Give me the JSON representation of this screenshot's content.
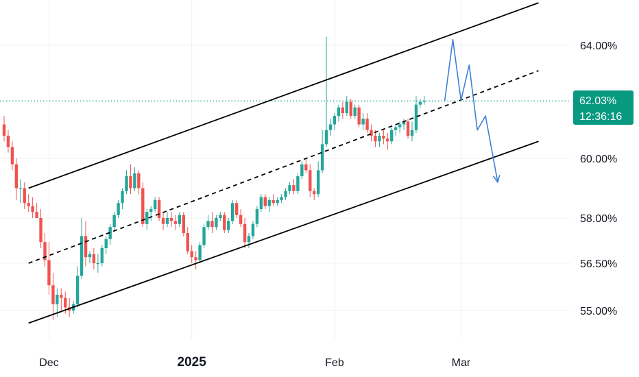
{
  "chart_data": {
    "type": "candlestick",
    "title": "",
    "ylabel": "",
    "xlabel": "",
    "y_axis_position": "right",
    "y_tick_labels": [
      "64.00%",
      "60.00%",
      "58.00%",
      "56.50%",
      "55.00%"
    ],
    "y_tick_values": [
      64.0,
      60.0,
      58.0,
      56.5,
      55.0
    ],
    "ylim": [
      54.4,
      65.3
    ],
    "x_tick_labels": [
      {
        "label": "Dec",
        "index": 11,
        "bold": false
      },
      {
        "label": "2025",
        "index": 46,
        "bold": true
      },
      {
        "label": "Feb",
        "index": 81,
        "bold": false
      },
      {
        "label": "Mar",
        "index": 112,
        "bold": false
      }
    ],
    "x_index_range": [
      0,
      131
    ],
    "current_price": {
      "label": "62.03%",
      "value": 62.03,
      "countdown": "12:36:16"
    },
    "candles": [
      [
        61.2,
        61.5,
        60.6,
        60.8
      ],
      [
        60.8,
        61.0,
        60.2,
        60.4
      ],
      [
        60.4,
        60.6,
        59.6,
        59.8
      ],
      [
        59.8,
        60.0,
        58.6,
        59.0
      ],
      [
        59.0,
        59.3,
        58.5,
        59.0
      ],
      [
        59.0,
        59.2,
        58.3,
        58.5
      ],
      [
        58.5,
        58.8,
        58.2,
        58.4
      ],
      [
        58.4,
        58.7,
        58.0,
        58.2
      ],
      [
        58.2,
        58.5,
        58.0,
        58.0
      ],
      [
        58.0,
        58.3,
        57.0,
        57.2
      ],
      [
        57.2,
        57.5,
        56.4,
        56.6
      ],
      [
        56.6,
        57.2,
        55.5,
        55.8
      ],
      [
        55.8,
        56.2,
        54.7,
        55.2
      ],
      [
        55.2,
        55.7,
        54.8,
        55.5
      ],
      [
        55.5,
        55.7,
        55.0,
        55.4
      ],
      [
        55.4,
        55.6,
        54.9,
        55.1
      ],
      [
        55.1,
        55.4,
        54.8,
        55.0
      ],
      [
        55.0,
        55.3,
        54.9,
        55.2
      ],
      [
        55.2,
        56.4,
        55.1,
        56.1
      ],
      [
        56.1,
        58.0,
        56.0,
        57.4
      ],
      [
        57.4,
        57.9,
        56.4,
        56.7
      ],
      [
        56.7,
        56.9,
        56.5,
        56.8
      ],
      [
        56.8,
        57.0,
        56.3,
        56.5
      ],
      [
        56.5,
        56.8,
        56.2,
        56.5
      ],
      [
        56.5,
        57.1,
        56.4,
        57.0
      ],
      [
        57.0,
        57.4,
        56.8,
        57.3
      ],
      [
        57.3,
        57.8,
        57.1,
        57.7
      ],
      [
        57.7,
        58.2,
        57.6,
        58.1
      ],
      [
        58.1,
        58.6,
        58.0,
        58.5
      ],
      [
        58.5,
        59.0,
        58.3,
        58.9
      ],
      [
        58.9,
        59.6,
        58.8,
        59.4
      ],
      [
        59.4,
        59.8,
        58.8,
        59.0
      ],
      [
        59.0,
        59.7,
        58.9,
        59.5
      ],
      [
        59.5,
        59.6,
        58.8,
        59.0
      ],
      [
        59.0,
        59.2,
        57.7,
        57.8
      ],
      [
        57.8,
        58.3,
        57.6,
        58.2
      ],
      [
        58.2,
        58.4,
        57.9,
        58.3
      ],
      [
        58.3,
        58.7,
        58.2,
        58.6
      ],
      [
        58.6,
        58.7,
        57.9,
        58.0
      ],
      [
        58.0,
        58.2,
        57.6,
        57.8
      ],
      [
        57.8,
        58.2,
        57.7,
        58.0
      ],
      [
        58.0,
        58.2,
        57.7,
        57.9
      ],
      [
        57.9,
        58.1,
        57.6,
        57.8
      ],
      [
        57.8,
        58.2,
        57.7,
        58.1
      ],
      [
        58.1,
        58.2,
        57.4,
        57.5
      ],
      [
        57.5,
        57.7,
        56.8,
        56.9
      ],
      [
        56.9,
        57.1,
        56.5,
        56.7
      ],
      [
        56.7,
        56.9,
        56.3,
        56.6
      ],
      [
        56.6,
        57.2,
        56.5,
        57.1
      ],
      [
        57.1,
        57.8,
        57.0,
        57.7
      ],
      [
        57.7,
        58.1,
        57.6,
        57.9
      ],
      [
        57.9,
        58.2,
        57.5,
        57.7
      ],
      [
        57.7,
        58.1,
        57.6,
        58.0
      ],
      [
        58.0,
        58.2,
        57.9,
        58.1
      ],
      [
        58.1,
        58.2,
        57.5,
        57.6
      ],
      [
        57.6,
        58.0,
        57.5,
        57.9
      ],
      [
        57.9,
        58.6,
        57.8,
        58.5
      ],
      [
        58.5,
        58.6,
        58.0,
        58.1
      ],
      [
        58.1,
        58.3,
        57.7,
        57.8
      ],
      [
        57.8,
        58.0,
        57.0,
        57.2
      ],
      [
        57.2,
        57.5,
        57.0,
        57.4
      ],
      [
        57.4,
        57.9,
        57.3,
        57.8
      ],
      [
        57.8,
        58.4,
        57.7,
        58.3
      ],
      [
        58.3,
        58.8,
        58.2,
        58.7
      ],
      [
        58.7,
        58.8,
        58.3,
        58.4
      ],
      [
        58.4,
        58.7,
        58.2,
        58.6
      ],
      [
        58.6,
        58.8,
        58.4,
        58.5
      ],
      [
        58.5,
        58.7,
        58.4,
        58.6
      ],
      [
        58.6,
        58.8,
        58.5,
        58.7
      ],
      [
        58.7,
        59.0,
        58.6,
        58.9
      ],
      [
        58.9,
        59.2,
        58.8,
        59.1
      ],
      [
        59.1,
        59.3,
        58.8,
        58.9
      ],
      [
        58.9,
        59.5,
        58.8,
        59.4
      ],
      [
        59.4,
        59.9,
        59.3,
        59.8
      ],
      [
        59.8,
        60.0,
        59.5,
        59.6
      ],
      [
        59.6,
        59.8,
        58.7,
        58.9
      ],
      [
        58.9,
        59.0,
        58.6,
        58.8
      ],
      [
        58.8,
        59.9,
        58.7,
        59.6
      ],
      [
        59.6,
        61.0,
        59.5,
        60.5
      ],
      [
        60.5,
        64.3,
        60.4,
        61.0
      ],
      [
        61.0,
        61.4,
        60.8,
        61.2
      ],
      [
        61.2,
        61.6,
        61.0,
        61.5
      ],
      [
        61.5,
        61.9,
        61.3,
        61.8
      ],
      [
        61.8,
        62.0,
        61.4,
        61.6
      ],
      [
        61.6,
        62.2,
        61.5,
        62.0
      ],
      [
        62.0,
        62.1,
        61.4,
        61.5
      ],
      [
        61.5,
        61.9,
        61.4,
        61.8
      ],
      [
        61.8,
        61.9,
        61.1,
        61.2
      ],
      [
        61.2,
        61.6,
        61.0,
        61.4
      ],
      [
        61.4,
        61.6,
        60.9,
        61.0
      ],
      [
        61.0,
        61.2,
        60.6,
        60.8
      ],
      [
        60.8,
        61.0,
        60.4,
        60.6
      ],
      [
        60.6,
        60.9,
        60.4,
        60.8
      ],
      [
        60.8,
        61.0,
        60.5,
        60.7
      ],
      [
        60.7,
        60.9,
        60.3,
        60.6
      ],
      [
        60.6,
        61.1,
        60.5,
        61.0
      ],
      [
        61.0,
        61.2,
        60.8,
        61.1
      ],
      [
        61.1,
        61.3,
        60.9,
        61.2
      ],
      [
        61.2,
        61.4,
        61.0,
        61.3
      ],
      [
        61.3,
        61.4,
        60.7,
        60.8
      ],
      [
        60.8,
        61.3,
        60.6,
        61.0
      ],
      [
        61.0,
        62.2,
        60.9,
        61.9
      ],
      [
        61.9,
        62.1,
        61.8,
        62.0
      ],
      [
        62.0,
        62.2,
        61.9,
        62.03
      ]
    ],
    "channel_lines": [
      {
        "name": "upper",
        "style": "solid",
        "points": [
          [
            6,
            59.0
          ],
          [
            131,
            65.5
          ]
        ]
      },
      {
        "name": "middle",
        "style": "dashed",
        "points": [
          [
            6,
            56.5
          ],
          [
            131,
            63.1
          ]
        ]
      },
      {
        "name": "lower",
        "style": "solid",
        "points": [
          [
            6,
            54.6
          ],
          [
            131,
            60.6
          ]
        ]
      }
    ],
    "projection_path": [
      [
        108,
        62.03
      ],
      [
        110,
        64.2
      ],
      [
        112,
        62.05
      ],
      [
        114,
        63.3
      ],
      [
        116,
        61.0
      ],
      [
        118,
        61.5
      ],
      [
        121,
        59.2
      ]
    ],
    "colors": {
      "up": "#26a69a",
      "down": "#ef5350",
      "channel": "#000000",
      "projection": "#3d7fd4",
      "price_line": "#089981",
      "price_badge": "#089981",
      "grid": "#f0f0f0"
    }
  }
}
